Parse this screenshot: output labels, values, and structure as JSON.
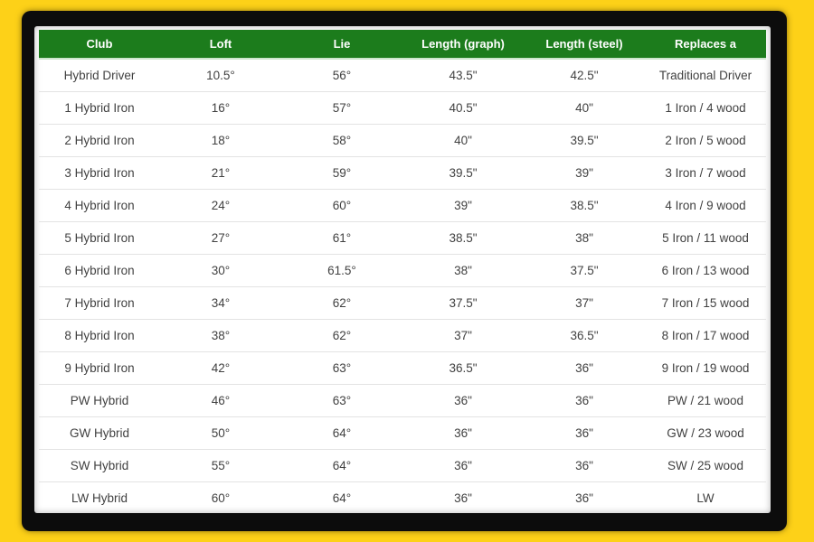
{
  "chart_data": {
    "type": "table",
    "columns": [
      "Club",
      "Loft",
      "Lie",
      "Length (graph)",
      "Length (steel)",
      "Replaces a"
    ],
    "rows": [
      [
        "Hybrid Driver",
        "10.5°",
        "56°",
        "43.5\"",
        "42.5\"",
        "Traditional Driver"
      ],
      [
        "1 Hybrid Iron",
        "16°",
        "57°",
        "40.5\"",
        "40\"",
        "1 Iron / 4 wood"
      ],
      [
        "2 Hybrid Iron",
        "18°",
        "58°",
        "40\"",
        "39.5\"",
        "2 Iron / 5 wood"
      ],
      [
        "3 Hybrid Iron",
        "21°",
        "59°",
        "39.5\"",
        "39\"",
        "3 Iron / 7 wood"
      ],
      [
        "4 Hybrid Iron",
        "24°",
        "60°",
        "39\"",
        "38.5\"",
        "4 Iron / 9 wood"
      ],
      [
        "5 Hybrid Iron",
        "27°",
        "61°",
        "38.5\"",
        "38\"",
        "5 Iron / 11 wood"
      ],
      [
        "6 Hybrid Iron",
        "30°",
        "61.5°",
        "38\"",
        "37.5\"",
        "6 Iron / 13 wood"
      ],
      [
        "7 Hybrid Iron",
        "34°",
        "62°",
        "37.5\"",
        "37\"",
        "7 Iron / 15 wood"
      ],
      [
        "8 Hybrid Iron",
        "38°",
        "62°",
        "37\"",
        "36.5\"",
        "8 Iron / 17 wood"
      ],
      [
        "9 Hybrid Iron",
        "42°",
        "63°",
        "36.5\"",
        "36\"",
        "9 Iron / 19 wood"
      ],
      [
        "PW Hybrid",
        "46°",
        "63°",
        "36\"",
        "36\"",
        "PW / 21 wood"
      ],
      [
        "GW Hybrid",
        "50°",
        "64°",
        "36\"",
        "36\"",
        "GW / 23 wood"
      ],
      [
        "SW Hybrid",
        "55°",
        "64°",
        "36\"",
        "36\"",
        "SW / 25 wood"
      ],
      [
        "LW Hybrid",
        "60°",
        "64°",
        "36\"",
        "36\"",
        "LW"
      ]
    ]
  },
  "colors": {
    "page_background": "#fdd118",
    "frame": "#0c0c0c",
    "header_background": "#1c7c1c",
    "header_text": "#ffffff",
    "row_text": "#414141",
    "row_divider": "#e3e3e3"
  }
}
